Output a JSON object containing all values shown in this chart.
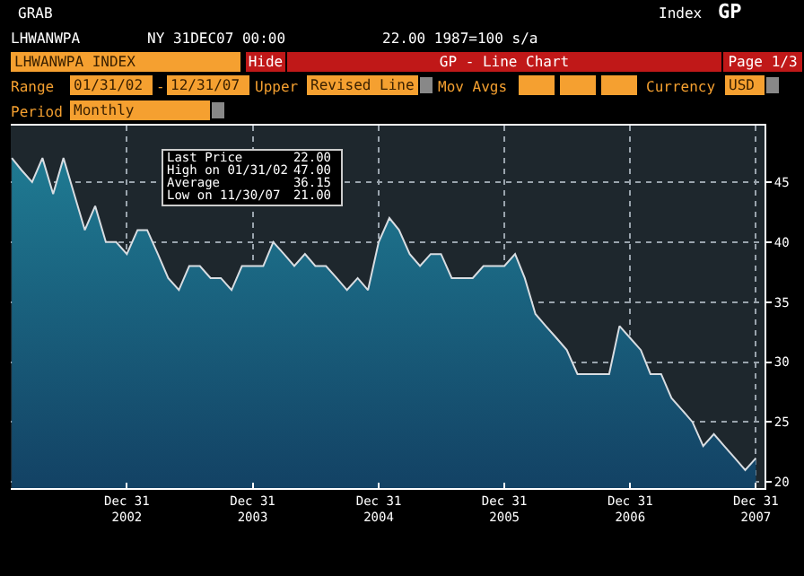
{
  "chart_data": {
    "type": "area",
    "title": "LHWANWPA INDEX",
    "annotations": [
      "GRAB",
      "LHWANWPA",
      "NY 31DEC07 00:00",
      "22.00 1987=100 s/a",
      "Index",
      "GP",
      "Hide",
      "GP - Line Chart",
      "Page 1/3",
      "Range",
      "01/31/02",
      "-",
      "12/31/07",
      "Upper",
      "Revised Line",
      "Mov Avgs",
      "Currency",
      "USD",
      "Period",
      "Monthly",
      "Last Price",
      "22.00",
      "High on 01/31/02",
      "47.00",
      "Average",
      "36.15",
      "Low on 11/30/07",
      "21.00"
    ],
    "x": [
      "2002-01-31",
      "2002-02-28",
      "2002-03-31",
      "2002-04-30",
      "2002-05-31",
      "2002-06-30",
      "2002-07-31",
      "2002-08-31",
      "2002-09-30",
      "2002-10-31",
      "2002-11-30",
      "2002-12-31",
      "2003-01-31",
      "2003-02-28",
      "2003-03-31",
      "2003-04-30",
      "2003-05-31",
      "2003-06-30",
      "2003-07-31",
      "2003-08-31",
      "2003-09-30",
      "2003-10-31",
      "2003-11-30",
      "2003-12-31",
      "2004-01-31",
      "2004-02-29",
      "2004-03-31",
      "2004-04-30",
      "2004-05-31",
      "2004-06-30",
      "2004-07-31",
      "2004-08-31",
      "2004-09-30",
      "2004-10-31",
      "2004-11-30",
      "2004-12-31",
      "2005-01-31",
      "2005-02-28",
      "2005-03-31",
      "2005-04-30",
      "2005-05-31",
      "2005-06-30",
      "2005-07-31",
      "2005-08-31",
      "2005-09-30",
      "2005-10-31",
      "2005-11-30",
      "2005-12-31",
      "2006-01-31",
      "2006-02-28",
      "2006-03-31",
      "2006-04-30",
      "2006-05-31",
      "2006-06-30",
      "2006-07-31",
      "2006-08-31",
      "2006-09-30",
      "2006-10-31",
      "2006-11-30",
      "2006-12-31",
      "2007-01-31",
      "2007-02-28",
      "2007-03-31",
      "2007-04-30",
      "2007-05-31",
      "2007-06-30",
      "2007-07-31",
      "2007-08-31",
      "2007-09-30",
      "2007-10-31",
      "2007-11-30",
      "2007-12-31"
    ],
    "series": [
      {
        "color": "#1f7a92",
        "values": [
          47,
          46,
          45,
          47,
          44,
          47,
          44,
          41,
          43,
          40,
          40,
          39,
          41,
          41,
          39,
          37,
          36,
          38,
          38,
          37,
          37,
          36,
          38,
          38,
          38,
          40,
          39,
          38,
          39,
          38,
          38,
          37,
          36,
          37,
          36,
          40,
          42,
          41,
          39,
          38,
          39,
          39,
          37,
          37,
          37,
          38,
          38,
          38,
          39,
          37,
          34,
          33,
          32,
          31,
          29,
          29,
          29,
          29,
          33,
          32,
          31,
          29,
          29,
          27,
          26,
          25,
          23,
          24,
          23,
          22,
          21,
          22
        ]
      }
    ],
    "xlim": [
      "2002-01-28",
      "2008-01-25"
    ],
    "xticks": [
      {
        "value": "2002-12-31",
        "label": "Dec 31\n2002"
      },
      {
        "value": "2003-12-31",
        "label": "Dec 31\n2003"
      },
      {
        "value": "2004-12-31",
        "label": "Dec 31\n2004"
      },
      {
        "value": "2005-12-31",
        "label": "Dec 31\n2005"
      },
      {
        "value": "2006-12-31",
        "label": "Dec 31\n2006"
      },
      {
        "value": "2007-12-31",
        "label": "Dec 31\n2007"
      }
    ],
    "ylim": [
      19.5,
      49.7
    ],
    "yticks": [
      20,
      25,
      30,
      35,
      40,
      45
    ],
    "grid": true,
    "line_style": "solid",
    "marker": "none"
  }
}
